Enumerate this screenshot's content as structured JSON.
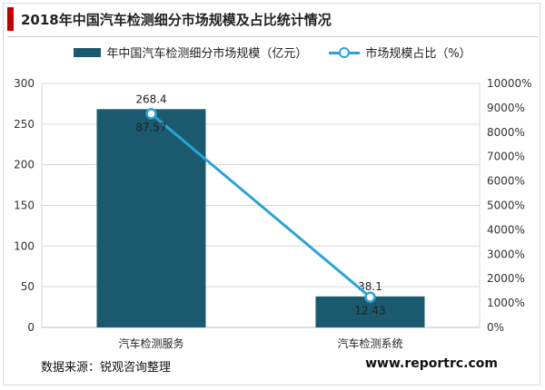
{
  "header": {
    "title": "2018年中国汽车检测细分市场规模及占比统计情况"
  },
  "footer": {
    "source": "数据来源：锐观咨询整理",
    "website": "www.reportrc.com"
  },
  "colors": {
    "bar": "#1b5a6e",
    "line": "#2aa3d6",
    "accent": "#c00000"
  },
  "chart_data": {
    "type": "bar",
    "categories": [
      "汽车检测服务",
      "汽车检测系统"
    ],
    "series": [
      {
        "name": "年中国汽车检测细分市场规模（亿元）",
        "type": "bar",
        "axis": "left",
        "values": [
          268.4,
          38.1
        ],
        "labels": [
          "268.4",
          "38.1"
        ]
      },
      {
        "name": "市场规模占比（%）",
        "type": "line",
        "axis": "right",
        "values": [
          87.57,
          12.43
        ],
        "labels": [
          "87.57",
          "12.43"
        ]
      }
    ],
    "y_left": {
      "min": 0,
      "max": 300,
      "ticks": [
        "0",
        "50",
        "100",
        "150",
        "200",
        "250",
        "300"
      ]
    },
    "y_right": {
      "min": 0,
      "max": 10000,
      "ticks": [
        "0%",
        "1000%",
        "2000%",
        "3000%",
        "4000%",
        "5000%",
        "6000%",
        "7000%",
        "8000%",
        "9000%",
        "10000%"
      ]
    },
    "grid": true,
    "legend": "top-center"
  }
}
